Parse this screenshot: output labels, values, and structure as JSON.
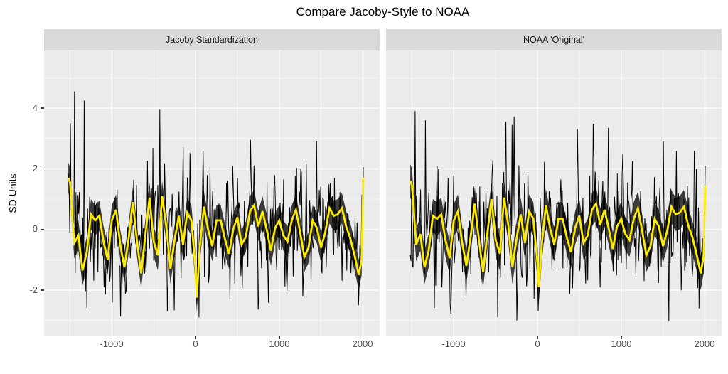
{
  "page": {
    "title": "Compare Jacoby-Style to NOAA"
  },
  "colors": {
    "figure_background": "#FFFFFF",
    "panel_background": "#EBEBEB",
    "strip_background": "#D9D9D9",
    "grid": "#FFFFFF",
    "raw": "#000000",
    "smooth": "#FFEB00",
    "ribbon": "#3A3A3A",
    "axis_text": "#4D4D4D",
    "tick_mark": "#333333"
  },
  "chart_data": {
    "type": "line",
    "title": "Compare Jacoby-Style to NOAA",
    "xlabel": "",
    "ylabel": "SD Units",
    "legend": "none",
    "grid": true,
    "x_ticks": [
      -1000,
      0,
      1000,
      2000
    ],
    "y_ticks": [
      4,
      2,
      0,
      -2
    ],
    "x_minor_ticks": [
      -1500,
      -500,
      500,
      1500
    ],
    "y_minor_ticks": [
      5,
      3,
      1,
      -1,
      -3
    ],
    "xlim": [
      -1810,
      2200
    ],
    "ylim": [
      -3.5,
      5.9
    ],
    "x_range_data": [
      -1520,
      2005
    ],
    "smooth_x": [
      -1520,
      -1500,
      -1450,
      -1400,
      -1350,
      -1300,
      -1250,
      -1200,
      -1150,
      -1100,
      -1050,
      -1000,
      -950,
      -900,
      -850,
      -800,
      -750,
      -700,
      -650,
      -600,
      -550,
      -500,
      -450,
      -400,
      -350,
      -300,
      -250,
      -200,
      -150,
      -100,
      -50,
      0,
      15,
      50,
      100,
      150,
      200,
      250,
      300,
      350,
      400,
      450,
      500,
      550,
      600,
      650,
      700,
      750,
      800,
      850,
      900,
      950,
      1000,
      1050,
      1100,
      1150,
      1200,
      1250,
      1300,
      1350,
      1400,
      1450,
      1500,
      1550,
      1600,
      1650,
      1700,
      1750,
      1800,
      1850,
      1900,
      1950,
      1985,
      2005
    ],
    "facets": [
      {
        "label": "Jacoby Standardization",
        "smooth_y": [
          1.7,
          1.55,
          -0.45,
          -0.2,
          -1.35,
          -0.75,
          0.5,
          0.3,
          0.45,
          -0.4,
          -1.0,
          0.3,
          0.65,
          -0.5,
          -1.25,
          -0.3,
          0.9,
          -0.4,
          -1.45,
          -0.2,
          1.05,
          -0.4,
          -0.85,
          1.1,
          0.1,
          -1.3,
          -0.35,
          0.45,
          -0.5,
          0.55,
          0.3,
          -1.3,
          -2.25,
          -0.6,
          0.75,
          0.0,
          -0.55,
          0.3,
          0.3,
          -0.3,
          -0.8,
          0.0,
          0.4,
          -0.5,
          -0.25,
          0.6,
          0.8,
          0.1,
          0.6,
          0.0,
          -0.7,
          0.05,
          0.3,
          -0.2,
          -0.4,
          0.3,
          0.65,
          -0.1,
          -0.9,
          -0.6,
          0.3,
          0.05,
          -0.6,
          -0.1,
          0.7,
          0.45,
          0.5,
          0.7,
          0.1,
          -0.3,
          -0.85,
          -1.5,
          -1.0,
          1.7
        ],
        "ribbon_halfwidth": 0.5,
        "raw_noise": {
          "seed": 11,
          "n": 430,
          "sd": 0.92,
          "smooth_weight": 0.6,
          "autocorr": 0.25,
          "clamp": [
            -3.0,
            4.6
          ]
        },
        "extremes": [
          {
            "x": -1495,
            "y": 3.5
          },
          {
            "x": -1445,
            "y": 4.55
          },
          {
            "x": -1335,
            "y": 4.25
          },
          {
            "x": -1300,
            "y": -2.6
          },
          {
            "x": -425,
            "y": 3.95
          },
          {
            "x": 45,
            "y": -2.9
          },
          {
            "x": 660,
            "y": 2.95
          },
          {
            "x": 1450,
            "y": 2.9
          },
          {
            "x": 1950,
            "y": -2.5
          },
          {
            "x": 2005,
            "y": 2.05
          }
        ]
      },
      {
        "label": "NOAA 'Original'",
        "smooth_y": [
          1.6,
          1.45,
          -0.5,
          -0.15,
          -1.25,
          -0.7,
          0.45,
          0.35,
          0.5,
          -0.35,
          -0.95,
          0.3,
          0.6,
          -0.45,
          -1.2,
          -0.25,
          0.85,
          -0.35,
          -1.4,
          -0.15,
          1.0,
          -0.35,
          -0.8,
          1.05,
          0.15,
          -1.25,
          -0.3,
          0.5,
          -0.45,
          0.6,
          0.35,
          -1.1,
          -1.9,
          -0.55,
          0.8,
          0.05,
          -0.5,
          0.35,
          0.35,
          -0.25,
          -0.75,
          0.05,
          0.45,
          -0.45,
          -0.2,
          0.65,
          0.85,
          0.15,
          0.65,
          0.05,
          -0.65,
          0.1,
          0.35,
          -0.15,
          -0.35,
          0.35,
          0.7,
          -0.05,
          -0.85,
          -0.55,
          0.35,
          0.1,
          -0.55,
          -0.05,
          0.75,
          0.5,
          0.55,
          0.75,
          0.15,
          -0.25,
          -0.8,
          -1.45,
          -0.9,
          1.45
        ],
        "ribbon_halfwidth": 0.55,
        "raw_noise": {
          "seed": 29,
          "n": 430,
          "sd": 0.95,
          "smooth_weight": 0.6,
          "autocorr": 0.25,
          "clamp": [
            -3.05,
            4.2
          ]
        },
        "extremes": [
          {
            "x": -1460,
            "y": 3.9
          },
          {
            "x": -1340,
            "y": 3.6
          },
          {
            "x": -380,
            "y": 3.55
          },
          {
            "x": -300,
            "y": 3.45
          },
          {
            "x": -250,
            "y": -3.0
          },
          {
            "x": 480,
            "y": 3.3
          },
          {
            "x": 850,
            "y": 3.35
          },
          {
            "x": 1500,
            "y": 2.9
          },
          {
            "x": 1930,
            "y": -2.6
          },
          {
            "x": 2005,
            "y": 2.1
          }
        ]
      }
    ]
  }
}
